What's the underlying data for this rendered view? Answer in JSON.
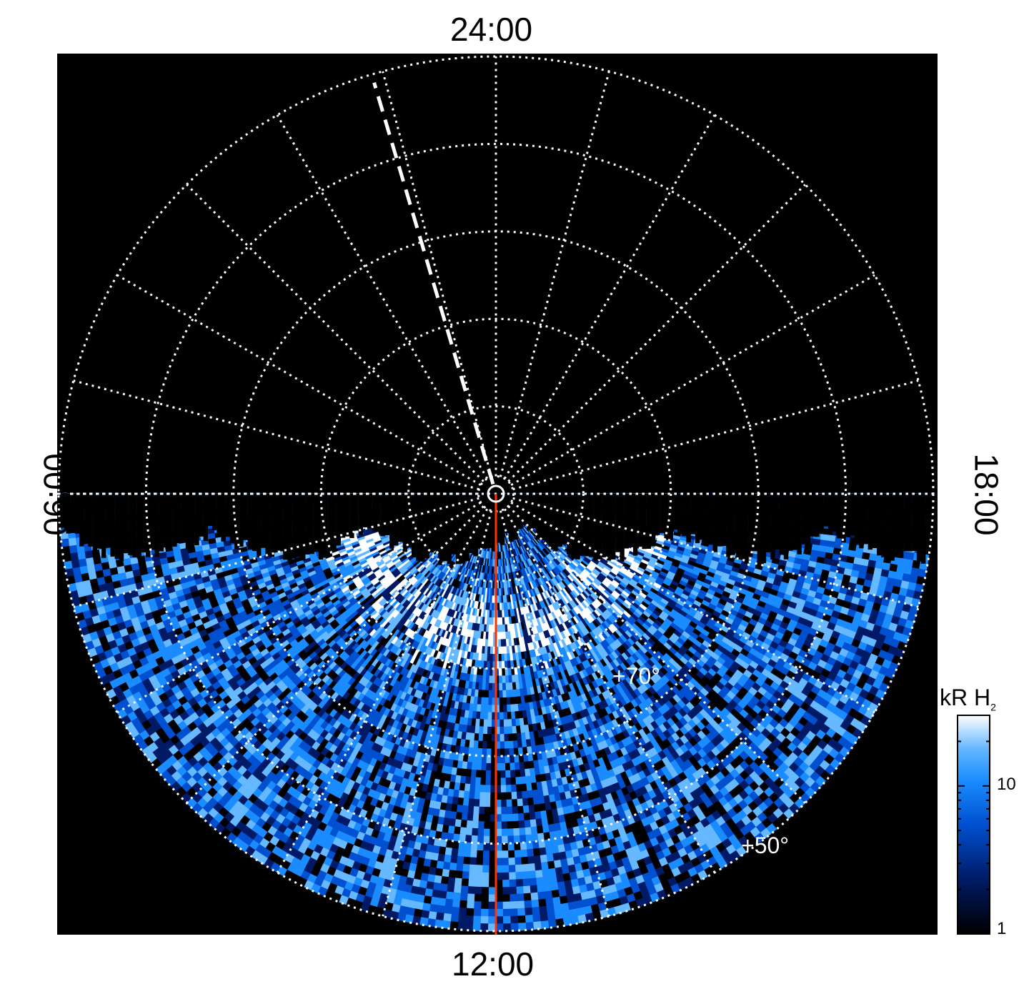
{
  "chart_data": {
    "type": "heatmap",
    "projection": "polar (north, local time around, latitude radial)",
    "local_time_labels": {
      "top": "24:00",
      "bottom": "12:00",
      "left": "06:00",
      "right": "18:00"
    },
    "latitude_labels": [
      "+70°",
      "+50°"
    ],
    "colorbar": {
      "title": "kR H",
      "title_subscript": "2",
      "ticks": [
        "10",
        "1"
      ],
      "scale": "log",
      "range": [
        1,
        30
      ]
    },
    "colors": {
      "background": "#000000",
      "grid": "#ffffff",
      "dayside_line": "#ff3300",
      "colormap": [
        "#000000",
        "#001a66",
        "#0050d0",
        "#1a8cff",
        "#66b8ff",
        "#ffffff"
      ]
    },
    "grid": true,
    "meridian_step_hours": 1,
    "latitude_circles_deg": [
      80,
      70,
      60,
      50,
      40
    ],
    "emission_region": "dayside hemisphere (06:00 through 12:00 to 18:00)",
    "marked_meridians": [
      {
        "style": "dashed white",
        "local_time_hours": 1.1
      },
      {
        "style": "solid red",
        "local_time_hours": 12.0
      }
    ]
  }
}
